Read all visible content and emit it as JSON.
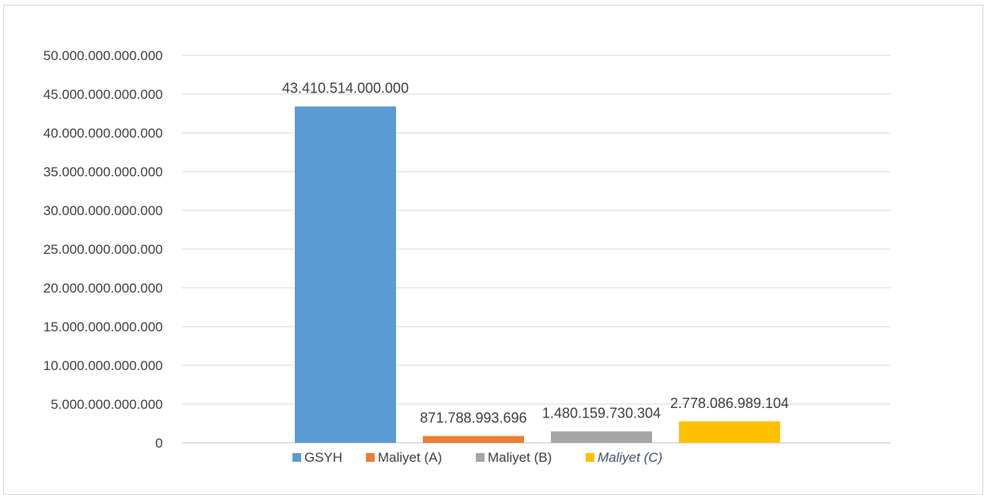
{
  "chart_data": {
    "type": "bar",
    "title": "",
    "xlabel": "",
    "ylabel": "",
    "categories": [
      "GSYH",
      "Maliyet (A)",
      "Maliyet (B)",
      "Maliyet (C)"
    ],
    "values": [
      43410514000000,
      871788993696,
      1480159730304,
      2778086989104
    ],
    "value_labels": [
      "43.410.514.000.000",
      "871.788.993.696",
      "1.480.159.730.304",
      "2.778.086.989.104"
    ],
    "colors": [
      "#5b9bd5",
      "#ed7d31",
      "#a5a5a5",
      "#ffc000"
    ],
    "ylim": [
      0,
      50000000000000
    ],
    "yticks": [
      0,
      5000000000000,
      10000000000000,
      15000000000000,
      20000000000000,
      25000000000000,
      30000000000000,
      35000000000000,
      40000000000000,
      45000000000000,
      50000000000000
    ],
    "ytick_labels": [
      "0",
      "5.000.000.000.000",
      "10.000.000.000.000",
      "15.000.000.000.000",
      "20.000.000.000.000",
      "25.000.000.000.000",
      "30.000.000.000.000",
      "35.000.000.000.000",
      "40.000.000.000.000",
      "45.000.000.000.000",
      "50.000.000.000.000"
    ],
    "grid": true,
    "legend_position": "bottom",
    "legend": [
      {
        "label": "GSYH",
        "color": "#5b9bd5",
        "italic": false
      },
      {
        "label": "Maliyet (A)",
        "color": "#ed7d31",
        "italic": false
      },
      {
        "label": "Maliyet (B)",
        "color": "#a5a5a5",
        "italic": false
      },
      {
        "label": "Maliyet (C)",
        "color": "#ffc000",
        "italic": true
      }
    ]
  }
}
